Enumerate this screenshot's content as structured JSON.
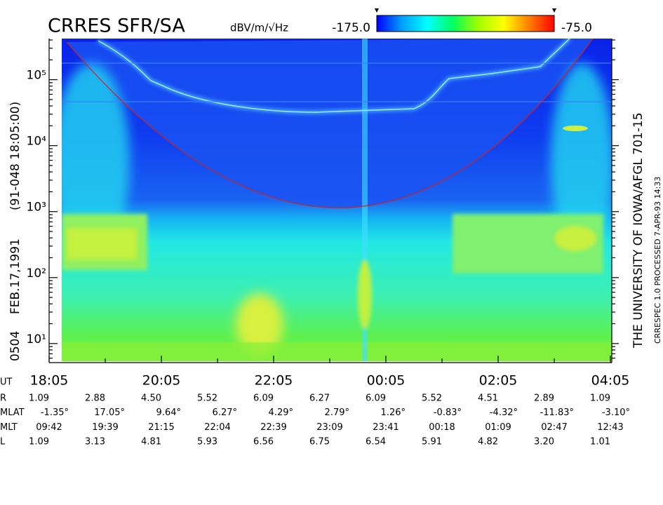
{
  "chart_data": {
    "type": "spectrogram",
    "title": "CRRES SFR/SA",
    "orbit": "0504",
    "date": "FEB.17,1991",
    "start": "(91-048 18:05:00)",
    "institution": "THE UNIVERSITY OF IOWA/AFGL 701-15",
    "processing": "CRRESPEC 1.0   PROCESSED  7-APR-93  14:33",
    "log_y": true,
    "ylim": [
      5.4,
      420000
    ],
    "yticks": [
      {
        "value": 10,
        "label": "10¹"
      },
      {
        "value": 100,
        "label": "10²"
      },
      {
        "value": 1000,
        "label": "10³"
      },
      {
        "value": 10000,
        "label": "10⁴"
      },
      {
        "value": 100000,
        "label": "10⁵"
      }
    ],
    "x_axis_label": "UT",
    "xticks": [
      "18:05",
      "20:05",
      "22:05",
      "00:05",
      "02:05",
      "04:05"
    ],
    "colorbar": {
      "label": "dBV/m/√Hz",
      "lim": [
        -175,
        -75
      ],
      "ticks": [
        {
          "value": -175,
          "label": "-175.0"
        },
        {
          "value": -75,
          "label": "-75.0"
        }
      ],
      "colors": [
        "#0000ff",
        "#00a0ff",
        "#00ffff",
        "#00ff60",
        "#a0ff00",
        "#ffff00",
        "#ff8000",
        "#ff0000"
      ]
    },
    "ephemeris": [
      {
        "name": "R",
        "values": [
          "1.09",
          "2.88",
          "4.50",
          "5.52",
          "6.09",
          "6.27",
          "6.09",
          "5.52",
          "4.51",
          "2.89",
          "1.09"
        ]
      },
      {
        "name": "MLAT",
        "values": [
          "-1.35°",
          "17.05°",
          "9.64°",
          "6.27°",
          "4.29°",
          "2.79°",
          "1.26°",
          "-0.83°",
          "-4.32°",
          "-11.83°",
          "-3.10°"
        ]
      },
      {
        "name": "MLT",
        "values": [
          "09:42",
          "19:39",
          "21:15",
          "22:04",
          "22:39",
          "23:09",
          "23:41",
          "00:18",
          "01:09",
          "02:47",
          "12:43"
        ]
      },
      {
        "name": "L",
        "values": [
          "1.09",
          "3.13",
          "4.81",
          "5.93",
          "6.56",
          "6.75",
          "6.54",
          "5.91",
          "4.82",
          "3.20",
          "1.01"
        ]
      }
    ]
  }
}
